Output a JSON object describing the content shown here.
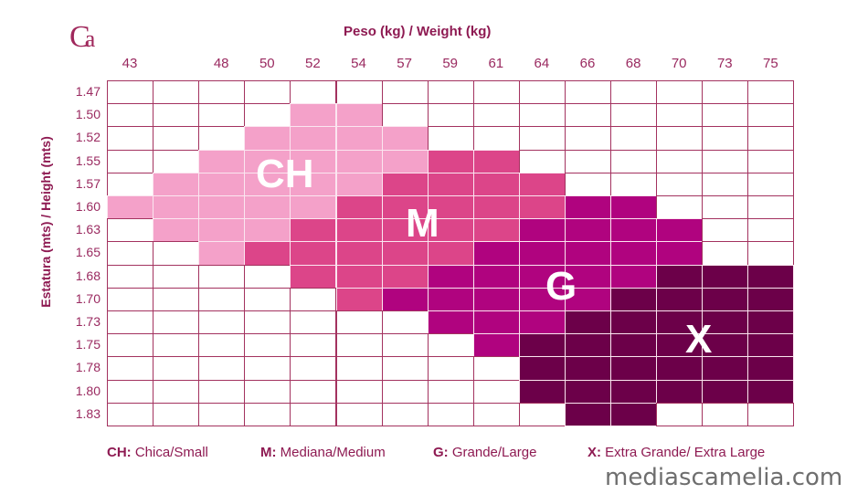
{
  "logo_text": "Ca",
  "chart_data": {
    "type": "heatmap",
    "title": "Peso (kg) / Weight (kg)",
    "xlabel": "Peso (kg) / Weight (kg)",
    "ylabel": "Estatura (mts) / Height (mts)",
    "x_ticks": [
      "43",
      "",
      "48",
      "50",
      "52",
      "54",
      "57",
      "59",
      "61",
      "64",
      "66",
      "68",
      "70",
      "73",
      "75"
    ],
    "y_ticks": [
      "1.47",
      "1.50",
      "1.52",
      "1.55",
      "1.57",
      "1.60",
      "1.63",
      "1.65",
      "1.68",
      "1.70",
      "1.73",
      "1.75",
      "1.78",
      "1.80",
      "1.83"
    ],
    "grid": [
      "...............",
      "....SS.........",
      "...SSSS........",
      "..SSSSSMM......",
      ".SSSSSMMMM.....",
      "SSSSSMMMMMGG...",
      ".SSSMMMMMGGGG..",
      "..SMMMMMGGGGG..",
      "....MMMGGGGGXXX",
      ".....MGGGGGXXXX",
      ".......GGGXXXXX",
      "........GXXXXXX",
      ".........XXXXXX",
      ".........XXXXXX",
      "..........XX..."
    ],
    "sizes": {
      "S": {
        "code": "CH",
        "label": "Chica/Small",
        "color": "#f4a1c9"
      },
      "M": {
        "code": "M",
        "label": "Mediana/Medium",
        "color": "#dc4589"
      },
      "G": {
        "code": "G",
        "label": "Grande/Large",
        "color": "#b0037f"
      },
      "X": {
        "code": "X",
        "label": "Extra Grande/ Extra Large",
        "color": "#6c0049"
      }
    }
  },
  "legend": [
    {
      "key": "CH:",
      "text": "Chica/Small"
    },
    {
      "key": "M:",
      "text": "Mediana/Medium"
    },
    {
      "key": "G:",
      "text": "Grande/Large"
    },
    {
      "key": "X:",
      "text": "Extra Grande/ Extra Large"
    }
  ],
  "watermark": "mediascamelia.com"
}
